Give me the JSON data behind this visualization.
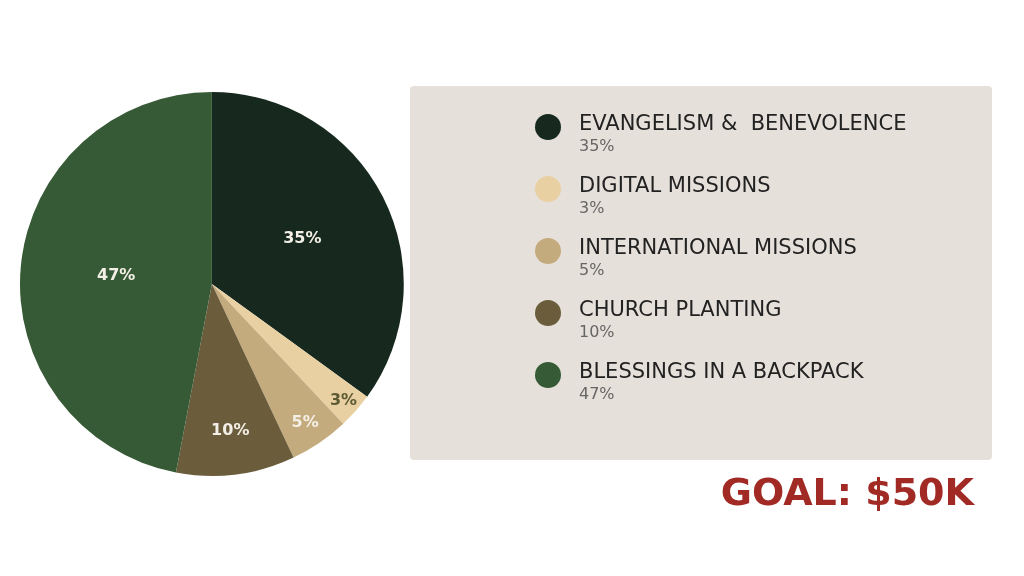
{
  "chart_data": {
    "type": "pie",
    "categories": [
      "EVANGELISM &  BENEVOLENCE",
      "DIGITAL MISSIONS",
      "INTERNATIONAL MISSIONS",
      "CHURCH PLANTING",
      "BLESSINGS IN A BACKPACK"
    ],
    "values": [
      35,
      3,
      5,
      10,
      47
    ],
    "colors": [
      "#17291f",
      "#e8d0a2",
      "#c4ab7d",
      "#6b5d3c",
      "#365a35"
    ],
    "value_labels": [
      "35%",
      "3%",
      "5%",
      "10%",
      "47%"
    ],
    "data_labels": true,
    "legend": "right",
    "annotations": [
      "GOAL: $50K"
    ]
  }
}
